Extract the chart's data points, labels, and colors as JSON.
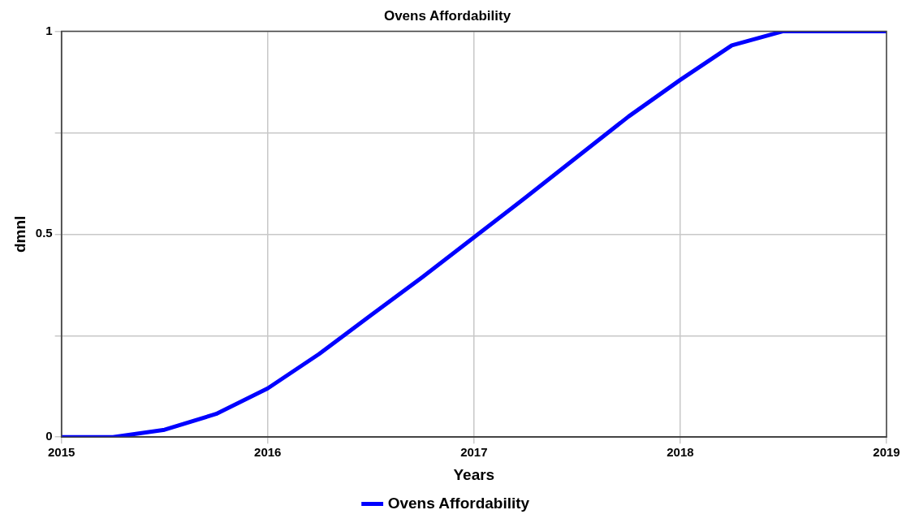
{
  "chart_data": {
    "type": "line",
    "title": "Ovens Affordability",
    "xlabel": "Years",
    "ylabel": "dmnl",
    "x": [
      2015,
      2015.25,
      2015.5,
      2015.75,
      2016,
      2016.25,
      2016.5,
      2016.75,
      2017,
      2017.25,
      2017.5,
      2017.75,
      2018,
      2018.25,
      2018.5,
      2018.75,
      2019
    ],
    "series": [
      {
        "name": "Ovens Affordability",
        "color": "#0000ff",
        "values": [
          0,
          0,
          0.018,
          0.057,
          0.12,
          0.205,
          0.3,
          0.394,
          0.492,
          0.59,
          0.69,
          0.79,
          0.88,
          0.965,
          1,
          1,
          1
        ]
      }
    ],
    "xlim": [
      2015,
      2019
    ],
    "xticks": [
      2015,
      2016,
      2017,
      2018,
      2019
    ],
    "ylim": [
      0,
      1
    ],
    "yticks": [
      0,
      {
        "value": 0.25,
        "label": null
      },
      0.5,
      {
        "value": 0.75,
        "label": null
      },
      1
    ],
    "grid": true,
    "legend": "bottom",
    "marker": "none",
    "line_style": "solid"
  }
}
